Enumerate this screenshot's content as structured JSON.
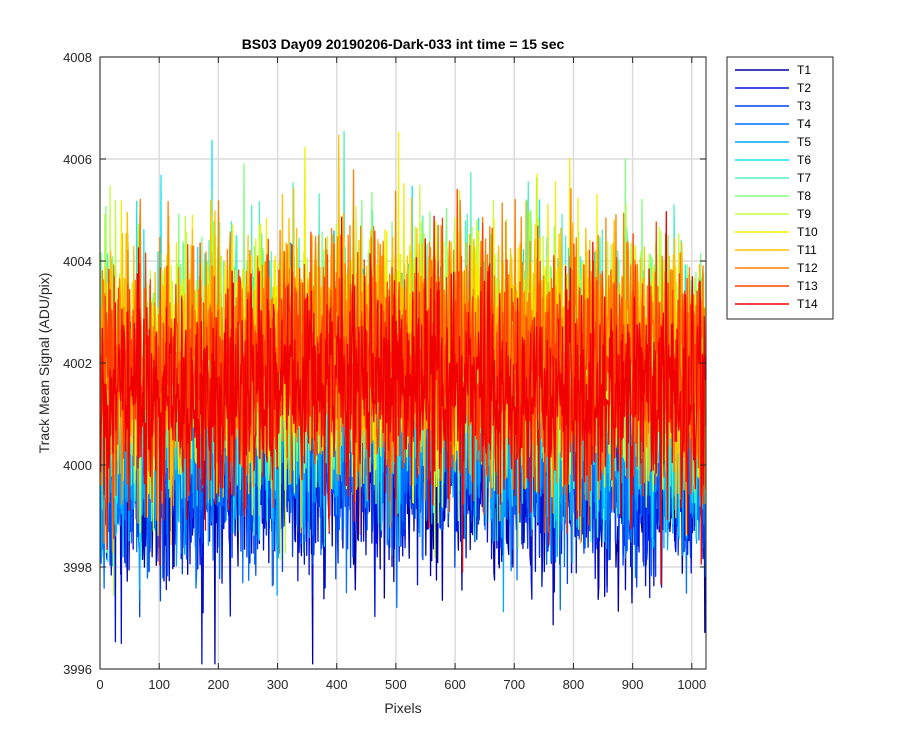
{
  "chart_data": {
    "type": "line",
    "title": "BS03 Day09 20190206-Dark-033 int time = 15 sec",
    "xlabel": "Pixels",
    "ylabel": "Track Mean Signal (ADU/pix)",
    "xlim": [
      0,
      1024
    ],
    "ylim": [
      3996,
      4008
    ],
    "xticks": [
      0,
      100,
      200,
      300,
      400,
      500,
      600,
      700,
      800,
      900,
      1000
    ],
    "yticks": [
      3996,
      3998,
      4000,
      4002,
      4004,
      4006,
      4008
    ],
    "grid": true,
    "legend_position": "outside-right-top",
    "series_points_per_track": 1024,
    "series": [
      {
        "name": "T1",
        "color": "#0000A6",
        "mean": 3999.6,
        "noise": 1.05
      },
      {
        "name": "T2",
        "color": "#0010D8",
        "mean": 3999.7,
        "noise": 1.05
      },
      {
        "name": "T3",
        "color": "#0040F0",
        "mean": 3999.9,
        "noise": 1.05
      },
      {
        "name": "T4",
        "color": "#0070FF",
        "mean": 4000.2,
        "noise": 1.1
      },
      {
        "name": "T5",
        "color": "#00A8FF",
        "mean": 4000.5,
        "noise": 1.1
      },
      {
        "name": "T6",
        "color": "#10E8F0",
        "mean": 4001.3,
        "noise": 1.2
      },
      {
        "name": "T7",
        "color": "#50F0C0",
        "mean": 4001.6,
        "noise": 1.2
      },
      {
        "name": "T8",
        "color": "#80FF80",
        "mean": 4001.8,
        "noise": 1.2
      },
      {
        "name": "T9",
        "color": "#C0FF40",
        "mean": 4001.9,
        "noise": 1.2
      },
      {
        "name": "T10",
        "color": "#F0F000",
        "mean": 4001.9,
        "noise": 1.2
      },
      {
        "name": "T11",
        "color": "#FFC000",
        "mean": 4001.9,
        "noise": 1.2
      },
      {
        "name": "T12",
        "color": "#FF8000",
        "mean": 4002.0,
        "noise": 1.2
      },
      {
        "name": "T13",
        "color": "#FF4000",
        "mean": 4001.5,
        "noise": 1.15
      },
      {
        "name": "T14",
        "color": "#F00000",
        "mean": 4001.1,
        "noise": 1.1
      }
    ]
  }
}
